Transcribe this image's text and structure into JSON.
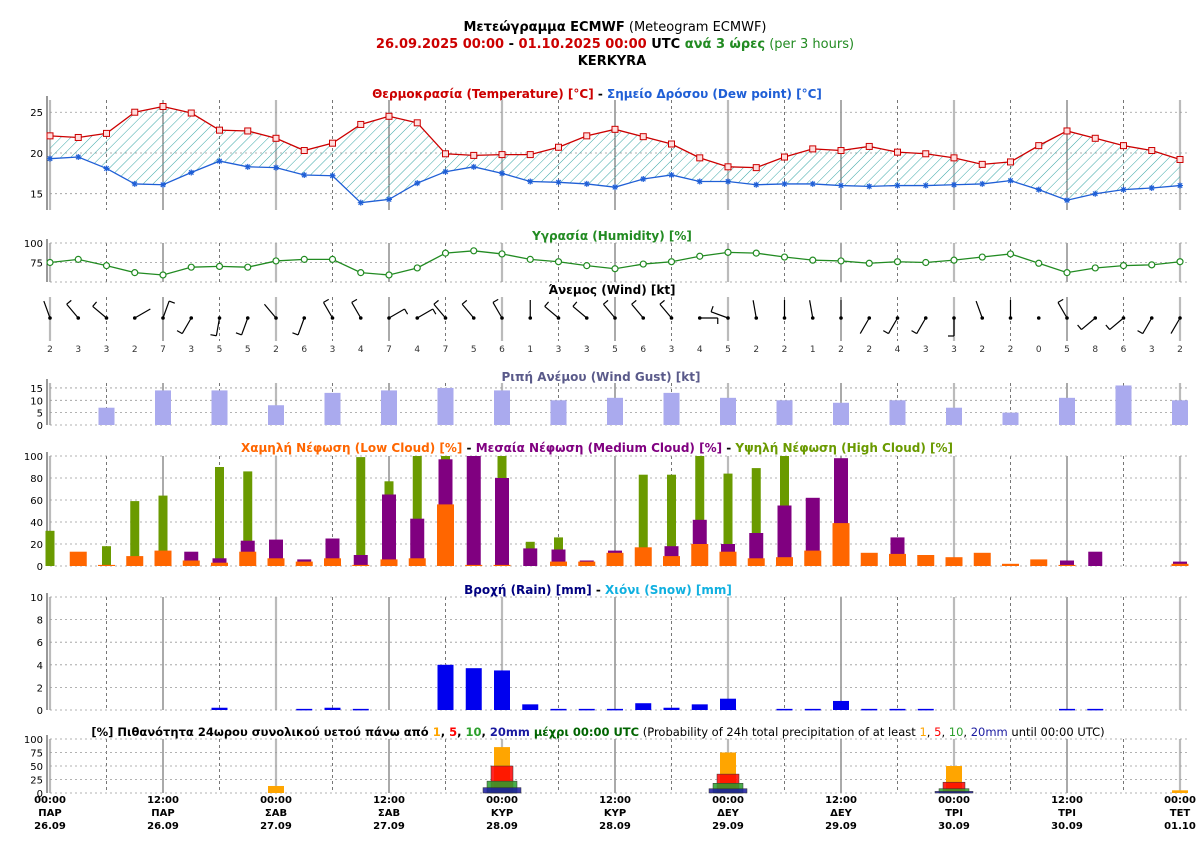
{
  "header": {
    "line1_main": "Μετεώγραμμα ECMWF",
    "line1_sub": " (Meteogram ECMWF)",
    "line2_from": "26.09.2025 00:00",
    "line2_dash": " - ",
    "line2_to": "01.10.2025 00:00",
    "line2_utc": " UTC ",
    "line2_step": "ανά 3 ώρες",
    "line2_step_en": " (per 3 hours)",
    "location": "KERKYRA"
  },
  "colors": {
    "temp": "#cc0000",
    "dew": "#1f5fd6",
    "hatch": "#3aa7a7",
    "humidity": "#228b22",
    "gust": "#aaaaee",
    "gust_title": "#5a5a8a",
    "low_cloud": "#ff6600",
    "med_cloud": "#800080",
    "high_cloud": "#6a9a00",
    "rain": "#0000ee",
    "snow": "#10b0e0",
    "rain_title": "#000080",
    "p1": "#ffa500",
    "p5": "#ff0000",
    "p10": "#2ca02c",
    "p20": "#1a1aa0"
  },
  "titles": {
    "temp_a": "Θερμοκρασία (Temperature) [°C]",
    "temp_sep": " - ",
    "temp_b": "Σημείο Δρόσου (Dew point) [°C]",
    "humidity": "Υγρασία (Humidity) [%]",
    "wind": "Άνεμος (Wind) [kt]",
    "gust": "Ριπή Ανέμου (Wind Gust) [kt]",
    "cloud_low": "Χαμηλή Νέφωση (Low Cloud) [%]",
    "cloud_sep": " - ",
    "cloud_med": "Μεσαία Νέφωση (Medium Cloud) [%]",
    "cloud_high": "Υψηλή Νέφωση (High Cloud) [%]",
    "rain": "Βροχή (Rain) [mm]",
    "rain_sep": " - ",
    "snow": "Χιόνι (Snow) [mm]",
    "prob_a": "[%] Πιθανότητα 24ωρου συνολικού υετού πάνω από ",
    "prob_t1": "1",
    "prob_t5": "5",
    "prob_t10": "10",
    "prob_t20": "20mm",
    "prob_b": " μέχρι 00:00 UTC",
    "prob_c": " (Probability of 24h total precipitation of at least ",
    "prob_d": " until 00:00 UTC)",
    "comma": ", "
  },
  "time_axis": [
    {
      "time": "00:00",
      "day": "ΠΑΡ",
      "date": "26.09"
    },
    {
      "time": "12:00",
      "day": "ΠΑΡ",
      "date": "26.09"
    },
    {
      "time": "00:00",
      "day": "ΣΑΒ",
      "date": "27.09"
    },
    {
      "time": "12:00",
      "day": "ΣΑΒ",
      "date": "27.09"
    },
    {
      "time": "00:00",
      "day": "ΚΥΡ",
      "date": "28.09"
    },
    {
      "time": "12:00",
      "day": "ΚΥΡ",
      "date": "28.09"
    },
    {
      "time": "00:00",
      "day": "ΔΕΥ",
      "date": "29.09"
    },
    {
      "time": "12:00",
      "day": "ΔΕΥ",
      "date": "29.09"
    },
    {
      "time": "00:00",
      "day": "ΤΡΙ",
      "date": "30.09"
    },
    {
      "time": "12:00",
      "day": "ΤΡΙ",
      "date": "30.09"
    },
    {
      "time": "00:00",
      "day": "ΤΕΤ",
      "date": "01.10"
    }
  ],
  "chart_data": [
    {
      "type": "line",
      "title": "Θερμοκρασία (Temperature) [°C] - Σημείο Δρόσου (Dew point) [°C]",
      "x_step_hours": 3,
      "ylim": [
        13,
        26.5
      ],
      "yticks": [
        15,
        20,
        25
      ],
      "series": [
        {
          "name": "Θερμοκρασία (Temperature)",
          "values": [
            22.1,
            21.9,
            22.4,
            25.0,
            25.7,
            24.9,
            22.8,
            22.7,
            21.8,
            20.3,
            21.2,
            23.5,
            24.5,
            23.7,
            19.9,
            19.7,
            19.8,
            19.8,
            20.7,
            22.1,
            22.9,
            22.0,
            21.1,
            19.4,
            18.3,
            18.2,
            19.5,
            20.5,
            20.3,
            20.8,
            20.1,
            19.9,
            19.4,
            18.6,
            18.9,
            20.9,
            22.7,
            21.8,
            20.9,
            20.3,
            19.2
          ]
        },
        {
          "name": "Σημείο Δρόσου (Dew point)",
          "values": [
            19.3,
            19.5,
            18.1,
            16.2,
            16.1,
            17.6,
            19.0,
            18.3,
            18.2,
            17.3,
            17.2,
            13.9,
            14.3,
            16.3,
            17.7,
            18.3,
            17.5,
            16.5,
            16.4,
            16.2,
            15.8,
            16.8,
            17.3,
            16.5,
            16.5,
            16.1,
            16.2,
            16.2,
            16.0,
            15.9,
            16.0,
            16.0,
            16.1,
            16.2,
            16.6,
            15.5,
            14.2,
            15.0,
            15.5,
            15.7,
            16.0
          ]
        }
      ]
    },
    {
      "type": "line",
      "title": "Υγρασία (Humidity) [%]",
      "ylim": [
        50,
        100
      ],
      "yticks": [
        75,
        100
      ],
      "series": [
        {
          "name": "Υγρασία (Humidity)",
          "values": [
            75,
            79,
            71,
            62,
            59,
            69,
            70,
            69,
            77,
            79,
            79,
            62,
            59,
            68,
            87,
            90,
            86,
            79,
            76,
            71,
            67,
            73,
            76,
            83,
            88,
            87,
            82,
            78,
            77,
            74,
            76,
            75,
            78,
            82,
            86,
            74,
            62,
            68,
            71,
            72,
            76
          ]
        }
      ]
    },
    {
      "type": "scatter",
      "title": "Άνεμος (Wind) [kt]",
      "series": [
        {
          "name": "speed_kt",
          "values": [
            2,
            3,
            3,
            2,
            7,
            3,
            5,
            5,
            2,
            6,
            3,
            4,
            7,
            4,
            7,
            5,
            6,
            1,
            3,
            3,
            5,
            6,
            3,
            4,
            5,
            2,
            2,
            1,
            2,
            2,
            4,
            3,
            3,
            2,
            2,
            0,
            5,
            8,
            6,
            3,
            2
          ]
        }
      ]
    },
    {
      "type": "bar",
      "title": "Ριπή Ανέμου (Wind Gust) [kt]",
      "ylim": [
        0,
        17
      ],
      "yticks": [
        0,
        5,
        10,
        15
      ],
      "categories_hours": [
        6,
        12,
        18,
        24,
        30,
        36,
        42,
        48,
        54,
        60,
        66,
        72,
        78,
        84,
        90,
        96,
        102,
        108,
        114,
        120
      ],
      "values": [
        7,
        14,
        14,
        8,
        13,
        14,
        15,
        14,
        10,
        11,
        13,
        11,
        10,
        9,
        10,
        7,
        5,
        11,
        16,
        10
      ]
    },
    {
      "type": "bar",
      "title": "Χαμηλή Νέφωση (Low Cloud) [%] - Μεσαία Νέφωση (Medium Cloud) [%] - Υψηλή Νέφωση (High Cloud) [%]",
      "ylim": [
        0,
        100
      ],
      "yticks": [
        0,
        20,
        40,
        60,
        80,
        100
      ],
      "series": [
        {
          "name": "Χαμηλή Νέφωση (Low Cloud)",
          "values": [
            0,
            13,
            1,
            9,
            14,
            5,
            3,
            13,
            7,
            4,
            7,
            1,
            6,
            7,
            56,
            1,
            1,
            0,
            4,
            4,
            12,
            17,
            9,
            20,
            13,
            7,
            8,
            14,
            39,
            12,
            11,
            10,
            8,
            12,
            2,
            6,
            1,
            0,
            0,
            0,
            2
          ]
        },
        {
          "name": "Μεσαία Νέφωση (Medium Cloud)",
          "values": [
            0,
            0,
            0,
            0,
            0,
            13,
            7,
            23,
            24,
            6,
            25,
            10,
            65,
            43,
            97,
            100,
            80,
            16,
            15,
            5,
            14,
            0,
            18,
            42,
            20,
            30,
            55,
            62,
            98,
            0,
            26,
            0,
            0,
            0,
            0,
            0,
            5,
            13,
            0,
            0,
            4
          ]
        },
        {
          "name": "Υψηλή Νέφωση (High Cloud)",
          "values": [
            32,
            0,
            18,
            59,
            64,
            0,
            90,
            86,
            0,
            0,
            0,
            99,
            77,
            100,
            100,
            0,
            100,
            22,
            26,
            0,
            0,
            83,
            83,
            100,
            84,
            89,
            100,
            0,
            0,
            0,
            0,
            0,
            0,
            0,
            0,
            0,
            0,
            0,
            0,
            0,
            0
          ]
        }
      ]
    },
    {
      "type": "bar",
      "title": "Βροχή (Rain) [mm] - Χιόνι (Snow) [mm]",
      "ylim": [
        0,
        10
      ],
      "yticks": [
        0,
        2,
        4,
        6,
        8,
        10
      ],
      "series": [
        {
          "name": "Βροχή (Rain)",
          "values": [
            0,
            0,
            0,
            0,
            0,
            0,
            0.2,
            0,
            0,
            0.1,
            0.2,
            0.1,
            0,
            0,
            4.0,
            3.7,
            3.5,
            0.5,
            0.1,
            0.1,
            0.1,
            0.6,
            0.2,
            0.5,
            1.0,
            0,
            0.1,
            0.1,
            0.8,
            0.1,
            0.1,
            0.1,
            0,
            0,
            0,
            0,
            0.1,
            0.1,
            0,
            0,
            0
          ]
        },
        {
          "name": "Χιόνι (Snow)",
          "values": [
            0,
            0,
            0,
            0,
            0,
            0,
            0,
            0,
            0,
            0,
            0,
            0,
            0,
            0,
            0,
            0,
            0,
            0,
            0,
            0,
            0,
            0,
            0,
            0,
            0,
            0,
            0,
            0,
            0,
            0,
            0,
            0,
            0,
            0,
            0,
            0,
            0,
            0,
            0,
            0,
            0
          ]
        }
      ]
    },
    {
      "type": "bar",
      "title": "[%] Πιθανότητα 24ωρου συνολικού υετού πάνω από 1, 5, 10, 20mm μέχρι 00:00 UTC",
      "ylim": [
        0,
        100
      ],
      "yticks": [
        0,
        25,
        50,
        75,
        100
      ],
      "categories": [
        "27.09",
        "28.09",
        "29.09",
        "30.09",
        "01.10"
      ],
      "series": [
        {
          "name": "1mm",
          "values": [
            13,
            85,
            75,
            50,
            5
          ]
        },
        {
          "name": "5mm",
          "values": [
            0,
            50,
            35,
            20,
            0
          ]
        },
        {
          "name": "10mm",
          "values": [
            0,
            22,
            18,
            8,
            0
          ]
        },
        {
          "name": "20mm",
          "values": [
            0,
            10,
            8,
            3,
            0
          ]
        }
      ]
    }
  ]
}
